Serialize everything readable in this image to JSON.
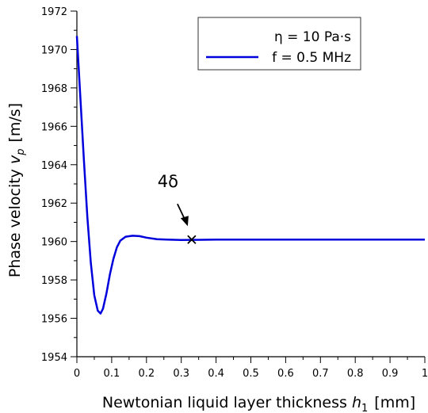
{
  "chart_data": {
    "type": "line",
    "xlabel": {
      "text": "Newtonian liquid layer thickness ",
      "var": "h",
      "sub": "1",
      "unit": "[mm]"
    },
    "ylabel": {
      "text": "Phase velocity ",
      "var": "v",
      "sub": "p",
      "unit": "[m/s]"
    },
    "x": [
      0,
      0.01,
      0.02,
      0.03,
      0.04,
      0.05,
      0.06,
      0.068,
      0.075,
      0.085,
      0.095,
      0.105,
      0.115,
      0.125,
      0.14,
      0.16,
      0.18,
      0.2,
      0.23,
      0.26,
      0.3,
      0.4,
      1
    ],
    "series": [
      {
        "name": "f = 0.5 MHz",
        "color": "#0000dd",
        "values": [
          1970.7,
          1967.5,
          1964.3,
          1961.3,
          1958.9,
          1957.2,
          1956.4,
          1956.25,
          1956.5,
          1957.3,
          1958.3,
          1959.1,
          1959.7,
          1960.05,
          1960.25,
          1960.3,
          1960.28,
          1960.2,
          1960.12,
          1960.1,
          1960.08,
          1960.1,
          1960.1
        ]
      }
    ],
    "legend_title": "η = 10 Pa·s",
    "legend": "upper right",
    "xlim": [
      0,
      1
    ],
    "xticks": [
      0,
      0.1,
      0.2,
      0.3,
      0.4,
      0.5,
      0.6,
      0.7,
      0.8,
      0.9,
      1
    ],
    "xminorticks": [
      0.05,
      0.15,
      0.25,
      0.35,
      0.45,
      0.55,
      0.65,
      0.75,
      0.85,
      0.95
    ],
    "ylim": [
      1954,
      1972
    ],
    "yticks": [
      1954,
      1956,
      1958,
      1960,
      1962,
      1964,
      1966,
      1968,
      1970,
      1972
    ],
    "yminorticks": [
      1955,
      1957,
      1959,
      1961,
      1963,
      1965,
      1967,
      1969,
      1971
    ],
    "annotation": {
      "text": "4δ",
      "x": 0.33,
      "y": 1960.1
    }
  }
}
